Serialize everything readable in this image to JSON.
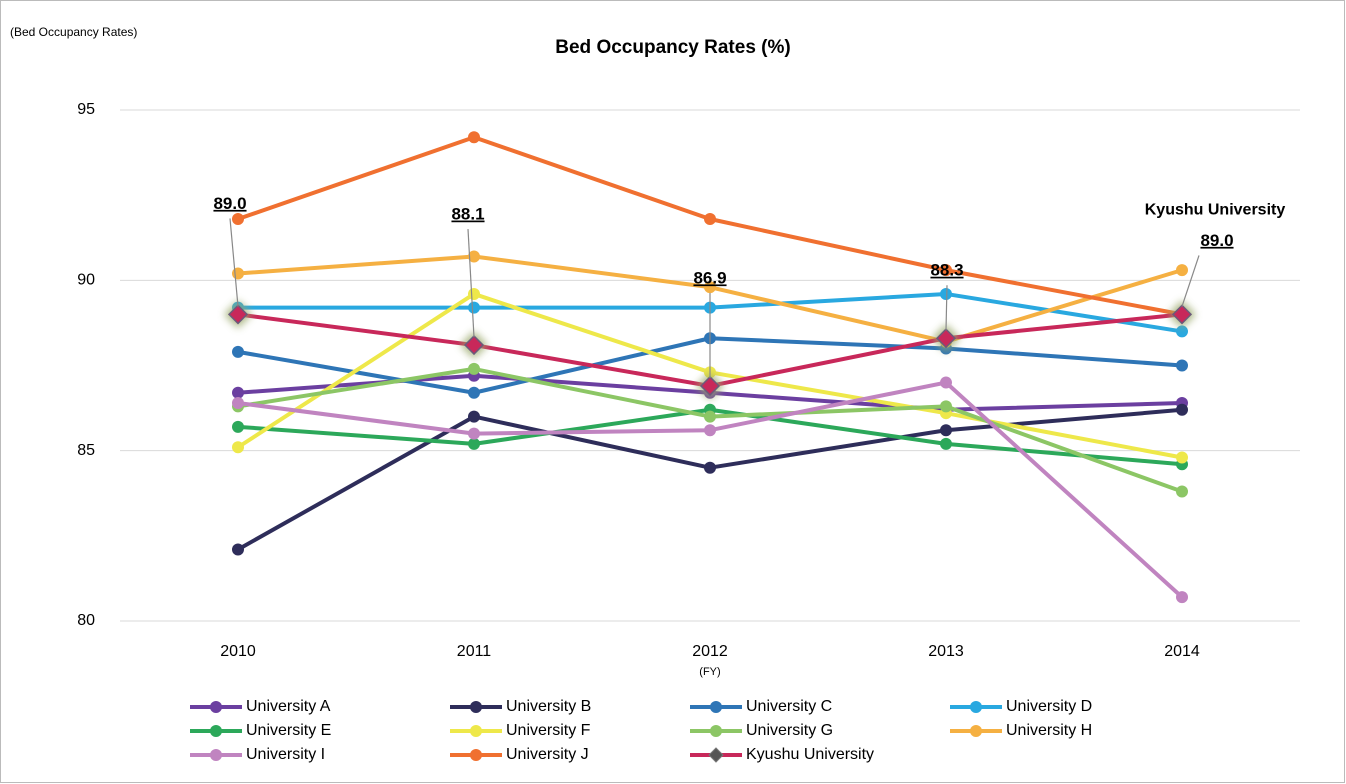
{
  "chart_data": {
    "type": "line",
    "title": "Bed Occupancy Rates (%)",
    "y_label": "(Bed Occupancy Rates)",
    "x_label": "(FY)",
    "categories": [
      "2010",
      "2011",
      "2012",
      "2013",
      "2014"
    ],
    "ylim": [
      80,
      95
    ],
    "yticks": [
      80,
      85,
      90,
      95
    ],
    "grid": true,
    "legend": "bottom",
    "series": [
      {
        "name": "University A",
        "color": "#6b3fa0",
        "values": [
          86.7,
          87.2,
          86.7,
          86.2,
          86.4
        ]
      },
      {
        "name": "University B",
        "color": "#2e2d5a",
        "values": [
          82.1,
          86.0,
          84.5,
          85.6,
          86.2
        ]
      },
      {
        "name": "University C",
        "color": "#2e75b6",
        "values": [
          87.9,
          86.7,
          88.3,
          88.0,
          87.5
        ]
      },
      {
        "name": "University D",
        "color": "#29a8e0",
        "values": [
          89.2,
          89.2,
          89.2,
          89.6,
          88.5
        ]
      },
      {
        "name": "University E",
        "color": "#2ca85a",
        "values": [
          85.7,
          85.2,
          86.2,
          85.2,
          84.6
        ]
      },
      {
        "name": "University F",
        "color": "#eee84a",
        "values": [
          85.1,
          89.6,
          87.3,
          86.1,
          84.8
        ]
      },
      {
        "name": "University G",
        "color": "#8cc665",
        "values": [
          86.3,
          87.4,
          86.0,
          86.3,
          83.8
        ]
      },
      {
        "name": "University H",
        "color": "#f5b042",
        "values": [
          90.2,
          90.7,
          89.8,
          88.2,
          90.3
        ]
      },
      {
        "name": "University I",
        "color": "#c084c0",
        "values": [
          86.4,
          85.5,
          85.6,
          87.0,
          80.7
        ]
      },
      {
        "name": "University J",
        "color": "#f07030",
        "values": [
          91.8,
          94.2,
          91.8,
          90.3,
          89.0
        ]
      },
      {
        "name": "Kyushu University",
        "color": "#c8285a",
        "marker": "diamond",
        "values": [
          89.0,
          88.1,
          86.9,
          88.3,
          89.0
        ],
        "value_labels": [
          "89.0",
          "88.1",
          "86.9",
          "88.3",
          "89.0"
        ]
      }
    ],
    "annotations": [
      "Kyushu University"
    ]
  }
}
